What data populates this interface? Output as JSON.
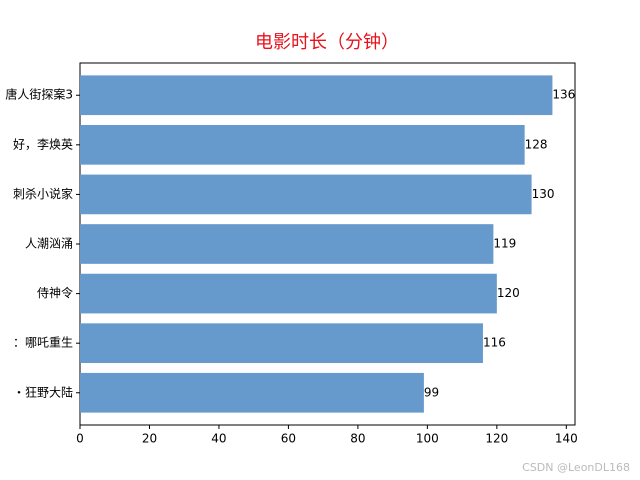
{
  "chart_data": {
    "type": "barh",
    "title": "电影时长（分钟）",
    "categories": [
      "唐人街探案3",
      "好，李焕英",
      "刺杀小说家",
      "人潮汹涌",
      "侍神令",
      "：哪吒重生",
      "・狂野大陆"
    ],
    "values": [
      136,
      128,
      130,
      119,
      120,
      116,
      99
    ],
    "color": "#6699cc",
    "title_color": "#e8121b",
    "xlim": [
      0,
      142.5
    ],
    "xticks": [
      0,
      20,
      40,
      60,
      80,
      100,
      120,
      140
    ],
    "watermark": "CSDN @LeonDL168"
  }
}
